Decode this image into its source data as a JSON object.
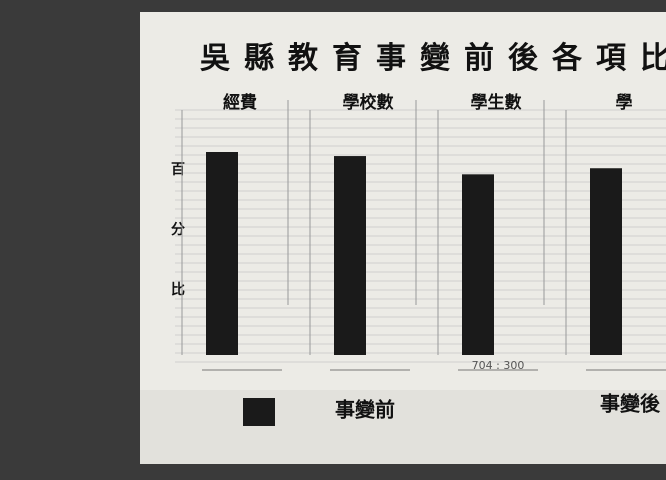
{
  "chart_data": {
    "type": "bar",
    "title": "吳縣教育事變前後各項比",
    "y_label_chars": [
      "百",
      "分",
      "比"
    ],
    "categories": [
      "經費",
      "學校數",
      "學生數",
      "學"
    ],
    "series": [
      {
        "name": "事變前",
        "color": "#1a1a1a",
        "values": [
          100,
          98,
          89,
          92
        ]
      }
    ],
    "legend_extra": "事變後",
    "ratio_labels": [
      null,
      null,
      "704 : 300",
      null
    ],
    "ylim": [
      0,
      100
    ]
  }
}
